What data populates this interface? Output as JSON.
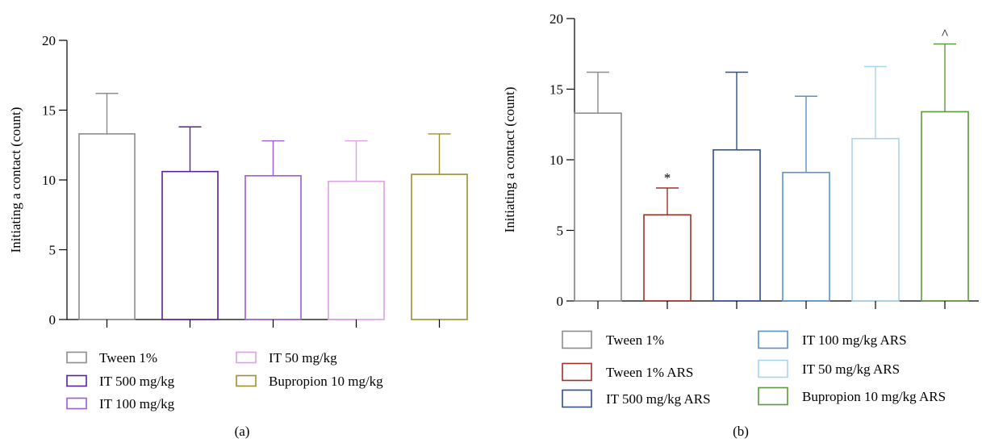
{
  "chart_data": [
    {
      "type": "bar",
      "caption": "(a)",
      "ylabel": "Initiating a contact (count)",
      "ylim": [
        0,
        20
      ],
      "yticks": [
        0,
        5,
        10,
        15,
        20
      ],
      "grid": false,
      "legend_placement": "bottom",
      "series": [
        {
          "name": "Tween 1%",
          "value": 13.3,
          "error": 2.9,
          "color": "#8c8c8c"
        },
        {
          "name": "IT 500 mg/kg",
          "value": 10.6,
          "error": 3.2,
          "color": "#5a1f9a"
        },
        {
          "name": "IT 100 mg/kg",
          "value": 10.3,
          "error": 2.5,
          "color": "#9b5cd6"
        },
        {
          "name": "IT 50 mg/kg",
          "value": 9.9,
          "error": 2.9,
          "color": "#dca0e6"
        },
        {
          "name": "Bupropion 10 mg/kg",
          "value": 10.4,
          "error": 2.9,
          "color": "#9a9030"
        }
      ]
    },
    {
      "type": "bar",
      "caption": "(b)",
      "ylabel": "Initiating a contact (count)",
      "ylim": [
        0,
        20
      ],
      "yticks": [
        0,
        5,
        10,
        15,
        20
      ],
      "grid": false,
      "legend_placement": "bottom",
      "series": [
        {
          "name": "Tween 1%",
          "value": 13.3,
          "error": 2.9,
          "color": "#8c8c8c",
          "annotation": ""
        },
        {
          "name": "Tween 1% ARS",
          "value": 6.1,
          "error": 1.9,
          "color": "#a03028",
          "annotation": "*"
        },
        {
          "name": "IT 500 mg/kg ARS",
          "value": 10.7,
          "error": 5.5,
          "color": "#2f4f8f",
          "annotation": ""
        },
        {
          "name": "IT 100 mg/kg ARS",
          "value": 9.1,
          "error": 5.4,
          "color": "#5b8fcf",
          "annotation": ""
        },
        {
          "name": "IT 50 mg/kg ARS",
          "value": 11.5,
          "error": 5.1,
          "color": "#a8d4ee",
          "annotation": ""
        },
        {
          "name": "Bupropion 10 mg/kg ARS",
          "value": 13.4,
          "error": 4.8,
          "color": "#5a9a3a",
          "annotation": "^"
        }
      ]
    }
  ]
}
